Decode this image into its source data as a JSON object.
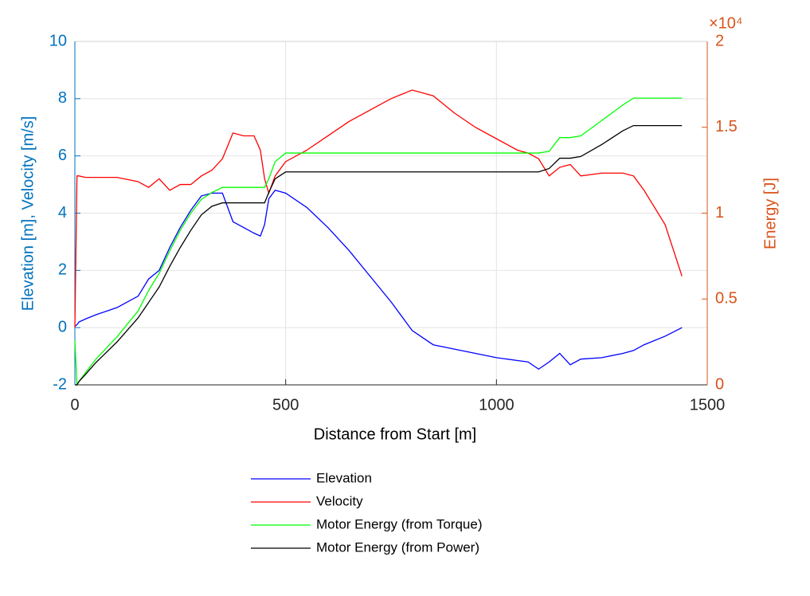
{
  "chart_data": {
    "type": "line",
    "x_label": "Distance from Start [m]",
    "y_label": "Elevation [m], Velocity [m/s]",
    "y2_label": "Energy [J]",
    "y2_exponent": "×10⁴",
    "x": [
      0,
      5,
      10,
      25,
      50,
      100,
      150,
      175,
      200,
      225,
      250,
      275,
      300,
      325,
      350,
      375,
      400,
      425,
      440,
      450,
      460,
      475,
      500,
      550,
      600,
      650,
      700,
      750,
      800,
      850,
      900,
      950,
      1000,
      1050,
      1075,
      1100,
      1125,
      1150,
      1175,
      1200,
      1250,
      1300,
      1325,
      1350,
      1400,
      1440
    ],
    "series": [
      {
        "name": "Elevation",
        "color": "#0000ff",
        "axis": "y",
        "values": [
          0.05,
          0.1,
          0.2,
          0.3,
          0.45,
          0.7,
          1.1,
          1.7,
          2.0,
          2.8,
          3.5,
          4.1,
          4.6,
          4.7,
          4.7,
          3.7,
          3.5,
          3.3,
          3.2,
          3.6,
          4.5,
          4.8,
          4.7,
          4.2,
          3.5,
          2.7,
          1.8,
          0.9,
          -0.1,
          -0.6,
          -0.75,
          -0.9,
          -1.05,
          -1.15,
          -1.2,
          -1.45,
          -1.2,
          -0.9,
          -1.3,
          -1.1,
          -1.05,
          -0.9,
          -0.8,
          -0.6,
          -0.3,
          0.0
        ]
      },
      {
        "name": "Velocity",
        "color": "#ff0000",
        "axis": "y",
        "values": [
          0,
          5.3,
          5.3,
          5.25,
          5.25,
          5.25,
          5.1,
          4.9,
          5.2,
          4.8,
          5.0,
          5.0,
          5.3,
          5.5,
          5.9,
          6.8,
          6.7,
          6.7,
          6.2,
          5.2,
          4.7,
          5.3,
          5.8,
          6.2,
          6.7,
          7.2,
          7.6,
          8.0,
          8.3,
          8.1,
          7.5,
          7.0,
          6.6,
          6.2,
          6.1,
          5.9,
          5.3,
          5.6,
          5.7,
          5.3,
          5.4,
          5.4,
          5.3,
          4.8,
          3.6,
          1.8
        ]
      },
      {
        "name": "Motor Energy (from Torque)",
        "color": "#00ff00",
        "axis": "y2",
        "values": [
          2600,
          0,
          200,
          700,
          1500,
          2800,
          4300,
          5500,
          6500,
          7800,
          9000,
          10000,
          10800,
          11200,
          11500,
          11500,
          11500,
          11500,
          11500,
          11500,
          12000,
          13000,
          13500,
          13500,
          13500,
          13500,
          13500,
          13500,
          13500,
          13500,
          13500,
          13500,
          13500,
          13500,
          13500,
          13500,
          13600,
          14400,
          14400,
          14500,
          15400,
          16300,
          16700,
          16700,
          16700,
          16700
        ]
      },
      {
        "name": "Motor Energy (from Power)",
        "color": "#000000",
        "axis": "y2",
        "values": [
          0,
          0,
          200,
          600,
          1300,
          2500,
          3900,
          4800,
          5700,
          6900,
          8000,
          9000,
          9900,
          10400,
          10600,
          10600,
          10600,
          10600,
          10600,
          10600,
          11200,
          12000,
          12400,
          12400,
          12400,
          12400,
          12400,
          12400,
          12400,
          12400,
          12400,
          12400,
          12400,
          12400,
          12400,
          12400,
          12600,
          13200,
          13200,
          13300,
          14000,
          14800,
          15100,
          15100,
          15100,
          15100
        ]
      }
    ],
    "xlim": [
      0,
      1500
    ],
    "xticks": [
      0,
      500,
      1000,
      1500
    ],
    "ylim": [
      -2,
      10
    ],
    "yticks": [
      -2,
      0,
      2,
      4,
      6,
      8,
      10
    ],
    "y2lim": [
      0,
      20000
    ],
    "y2ticks": [
      0,
      {
        "value": 5000,
        "label": "0.5"
      },
      {
        "value": 10000,
        "label": "1"
      },
      {
        "value": 15000,
        "label": "1.5"
      },
      {
        "value": 20000,
        "label": "2"
      }
    ],
    "grid": true,
    "legend": "below",
    "y_color": "#0072bd",
    "y2_color": "#d95319"
  }
}
